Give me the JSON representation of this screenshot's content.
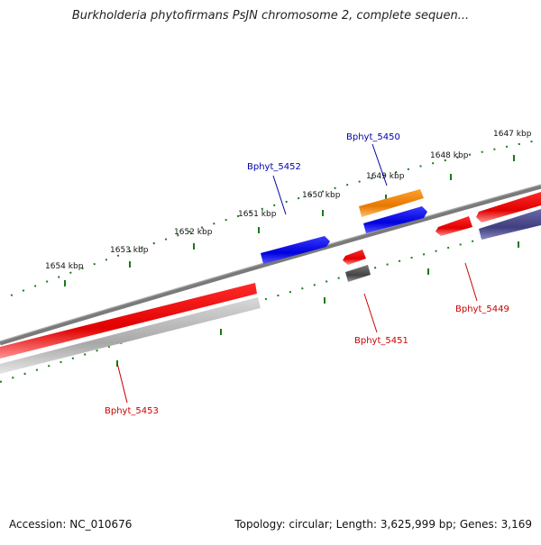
{
  "title": "Burkholderia phytofirmans PsJN chromosome 2, complete sequen...",
  "footer": {
    "accession": "Accession: NC_010676",
    "summary": "Topology: circular; Length: 3,625,999 bp; Genes: 3,169"
  },
  "ticks": [
    "1654 kbp",
    "1653 kbp",
    "1652 kbp",
    "1651 kbp",
    "1650 kbp",
    "1649 kbp",
    "1648 kbp",
    "1647 kbp"
  ],
  "genes": {
    "upper": [
      {
        "label": "Bphyt_5452",
        "color": "#0000aa"
      },
      {
        "label": "Bphyt_5450",
        "color": "#0000aa"
      }
    ],
    "lower": [
      {
        "label": "Bphyt_5453",
        "color": "#cc0000"
      },
      {
        "label": "Bphyt_5451",
        "color": "#cc0000"
      },
      {
        "label": "Bphyt_5449",
        "color": "#cc0000"
      }
    ]
  },
  "colors": {
    "backbone": "#808080",
    "tick_marks": "#1a7a1a",
    "forward_cds": "#0000ee",
    "reverse_cds": "#ee0000",
    "orange_feature": "#ff8800",
    "gray_feature": "#bbbbbb",
    "dark_gray_feature": "#555555",
    "purple_feature": "#4a4a8a"
  }
}
